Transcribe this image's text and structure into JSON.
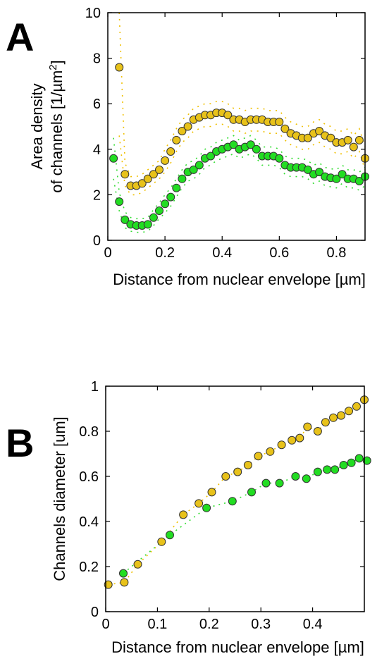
{
  "figure": {
    "panel_a_letter": "A",
    "panel_b_letter": "B",
    "colors": {
      "yellow_fill": "#e8c21a",
      "green_fill": "#22dd22",
      "yellow_dots": "#f0c000",
      "green_dots": "#33dd33",
      "marker_edge": "#333333"
    }
  },
  "chart_data": [
    {
      "type": "scatter",
      "panel": "A",
      "ylabel_line1": "Area density",
      "ylabel_line2": "of channels [1/µm",
      "ylabel_sup": "2",
      "ylabel_close": "]",
      "xlabel": "Distance from nuclear envelope [µm]",
      "xlim": [
        0,
        0.9
      ],
      "ylim": [
        0,
        10
      ],
      "xticks": [
        0,
        0.2,
        0.4,
        0.6,
        0.8
      ],
      "xtick_labels": [
        "0",
        "0.2",
        "0.4",
        "0.6",
        "0.8"
      ],
      "yticks": [
        0,
        2,
        4,
        6,
        8,
        10
      ],
      "ytick_labels": [
        "0",
        "2",
        "4",
        "6",
        "8",
        "10"
      ],
      "grid": false,
      "series": [
        {
          "color": "yellow",
          "x": [
            0.04,
            0.06,
            0.08,
            0.1,
            0.12,
            0.14,
            0.16,
            0.18,
            0.2,
            0.22,
            0.24,
            0.26,
            0.28,
            0.3,
            0.32,
            0.34,
            0.36,
            0.38,
            0.4,
            0.42,
            0.44,
            0.46,
            0.48,
            0.5,
            0.52,
            0.54,
            0.56,
            0.58,
            0.6,
            0.62,
            0.64,
            0.66,
            0.68,
            0.7,
            0.72,
            0.74,
            0.76,
            0.78,
            0.8,
            0.82,
            0.84,
            0.86,
            0.88,
            0.9
          ],
          "y": [
            7.6,
            2.9,
            2.4,
            2.4,
            2.5,
            2.7,
            2.9,
            3.1,
            3.5,
            3.9,
            4.4,
            4.8,
            5.0,
            5.3,
            5.4,
            5.5,
            5.5,
            5.6,
            5.6,
            5.5,
            5.3,
            5.3,
            5.2,
            5.3,
            5.3,
            5.3,
            5.2,
            5.2,
            5.2,
            4.9,
            4.7,
            4.6,
            4.5,
            4.5,
            4.7,
            4.8,
            4.6,
            4.5,
            4.3,
            4.3,
            4.4,
            4.1,
            4.4,
            3.6
          ],
          "err": [
            3.0,
            0.5,
            0.4,
            0.4,
            0.4,
            0.4,
            0.4,
            0.4,
            0.5,
            0.5,
            0.5,
            0.5,
            0.5,
            0.5,
            0.5,
            0.5,
            0.5,
            0.5,
            0.5,
            0.5,
            0.5,
            0.5,
            0.5,
            0.5,
            0.5,
            0.5,
            0.5,
            0.5,
            0.5,
            0.5,
            0.5,
            0.5,
            0.5,
            0.5,
            0.5,
            0.5,
            0.5,
            0.5,
            0.5,
            0.5,
            0.5,
            0.5,
            0.5,
            0.5
          ]
        },
        {
          "color": "green",
          "x": [
            0.02,
            0.04,
            0.06,
            0.08,
            0.1,
            0.12,
            0.14,
            0.16,
            0.18,
            0.2,
            0.22,
            0.24,
            0.26,
            0.28,
            0.3,
            0.32,
            0.34,
            0.36,
            0.38,
            0.4,
            0.42,
            0.44,
            0.46,
            0.48,
            0.5,
            0.52,
            0.54,
            0.56,
            0.58,
            0.6,
            0.62,
            0.64,
            0.66,
            0.68,
            0.7,
            0.72,
            0.74,
            0.76,
            0.78,
            0.8,
            0.82,
            0.84,
            0.86,
            0.88,
            0.9
          ],
          "y": [
            3.6,
            1.7,
            0.9,
            0.7,
            0.65,
            0.65,
            0.7,
            1.0,
            1.3,
            1.6,
            1.9,
            2.3,
            2.7,
            3.0,
            3.1,
            3.3,
            3.6,
            3.7,
            3.9,
            4.0,
            4.1,
            4.2,
            4.0,
            4.1,
            4.2,
            4.0,
            3.7,
            3.7,
            3.7,
            3.6,
            3.3,
            3.2,
            3.2,
            3.2,
            3.1,
            2.9,
            3.0,
            2.8,
            2.75,
            2.7,
            2.9,
            2.7,
            2.7,
            2.6,
            2.8
          ],
          "err": [
            0.9,
            0.4,
            0.35,
            0.3,
            0.3,
            0.3,
            0.3,
            0.35,
            0.35,
            0.4,
            0.4,
            0.4,
            0.4,
            0.4,
            0.4,
            0.4,
            0.4,
            0.4,
            0.4,
            0.4,
            0.4,
            0.4,
            0.4,
            0.4,
            0.4,
            0.4,
            0.4,
            0.4,
            0.4,
            0.4,
            0.4,
            0.4,
            0.4,
            0.4,
            0.4,
            0.4,
            0.4,
            0.4,
            0.4,
            0.4,
            0.4,
            0.4,
            0.4,
            0.4,
            0.4
          ]
        }
      ]
    },
    {
      "type": "scatter",
      "panel": "B",
      "ylabel": "Channels diameter [um]",
      "xlabel": "Distance from nuclear envelope [µm]",
      "xlim": [
        0,
        0.5
      ],
      "ylim": [
        0,
        1
      ],
      "xticks": [
        0,
        0.1,
        0.2,
        0.3,
        0.4
      ],
      "xtick_labels": [
        "0",
        "0.1",
        "0.2",
        "0.3",
        "0.4"
      ],
      "yticks": [
        0,
        0.2,
        0.4,
        0.6,
        0.8,
        1
      ],
      "ytick_labels": [
        "0",
        "0.2",
        "0.4",
        "0.6",
        "0.8",
        "1"
      ],
      "grid": false,
      "series": [
        {
          "color": "yellow",
          "x": [
            0.005,
            0.036,
            0.062,
            0.108,
            0.15,
            0.18,
            0.205,
            0.232,
            0.255,
            0.275,
            0.295,
            0.318,
            0.34,
            0.36,
            0.375,
            0.39,
            0.41,
            0.425,
            0.44,
            0.455,
            0.47,
            0.485,
            0.5
          ],
          "y": [
            0.12,
            0.13,
            0.21,
            0.31,
            0.43,
            0.48,
            0.53,
            0.6,
            0.62,
            0.65,
            0.69,
            0.71,
            0.74,
            0.76,
            0.77,
            0.82,
            0.8,
            0.84,
            0.86,
            0.87,
            0.89,
            0.91,
            0.94
          ]
        },
        {
          "color": "green",
          "x": [
            0.034,
            0.124,
            0.195,
            0.245,
            0.282,
            0.31,
            0.336,
            0.367,
            0.388,
            0.41,
            0.428,
            0.443,
            0.46,
            0.475,
            0.49,
            0.505
          ],
          "y": [
            0.17,
            0.34,
            0.46,
            0.49,
            0.53,
            0.57,
            0.57,
            0.6,
            0.59,
            0.62,
            0.63,
            0.63,
            0.65,
            0.66,
            0.68,
            0.67
          ]
        }
      ]
    }
  ]
}
